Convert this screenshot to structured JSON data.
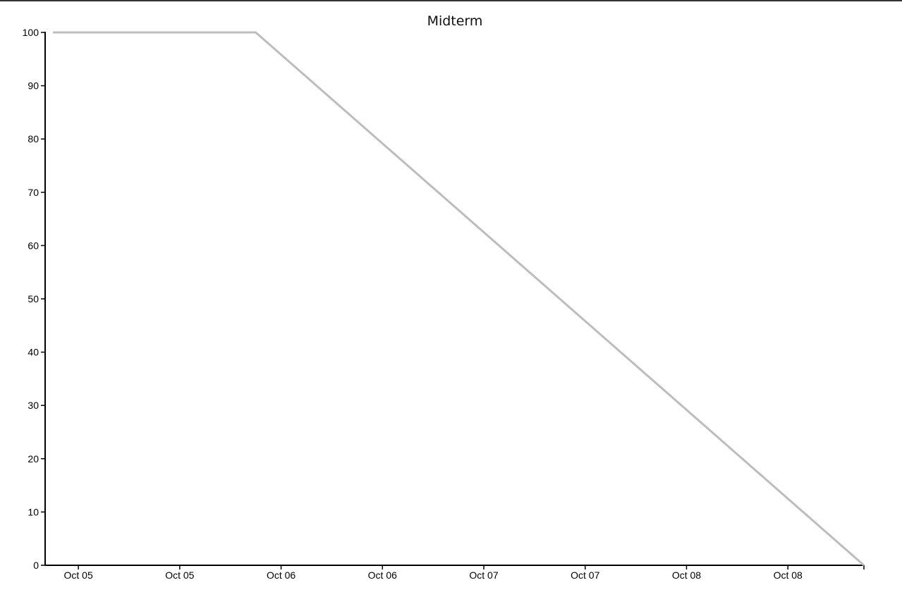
{
  "chart_data": {
    "type": "line",
    "title": "Midterm",
    "xlabel": "",
    "ylabel": "",
    "x_tick_labels": [
      "Oct 05",
      "Oct 05",
      "Oct 06",
      "Oct 06",
      "Oct 07",
      "Oct 07",
      "Oct 08",
      "Oct 08"
    ],
    "y_ticks": [
      0,
      10,
      20,
      30,
      40,
      50,
      60,
      70,
      80,
      90,
      100
    ],
    "ylim": [
      0,
      100
    ],
    "grid": false,
    "legend": "none",
    "series": [
      {
        "color": "#bdbdbd",
        "x": [
          "Oct 04 21:00",
          "Oct 05 21:00",
          "Oct 08 21:00"
        ],
        "y": [
          100,
          100,
          0
        ]
      }
    ]
  }
}
